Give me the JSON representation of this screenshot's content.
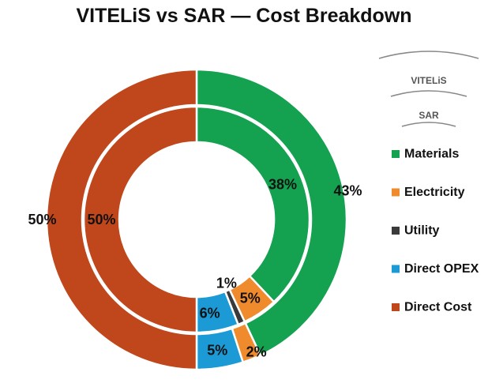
{
  "chart_data": {
    "type": "pie",
    "title": "VITELiS vs SAR — Cost Breakdown",
    "categories": [
      "Materials",
      "Electricity",
      "Utility",
      "Direct OPEX",
      "Direct Cost"
    ],
    "series": [
      {
        "name": "VITELiS",
        "values": [
          43,
          2,
          0,
          5,
          50
        ],
        "labels": [
          "43%",
          "2%",
          "",
          "5%",
          "50%"
        ]
      },
      {
        "name": "SAR",
        "values": [
          38,
          5,
          1,
          6,
          50
        ],
        "labels": [
          "38%",
          "5%",
          "1%",
          "6%",
          "50%"
        ]
      }
    ],
    "colors": [
      "#14a150",
      "#ef8a2d",
      "#3a3a3a",
      "#1b9ad6",
      "#c0461b"
    ],
    "legend_position": "right"
  }
}
